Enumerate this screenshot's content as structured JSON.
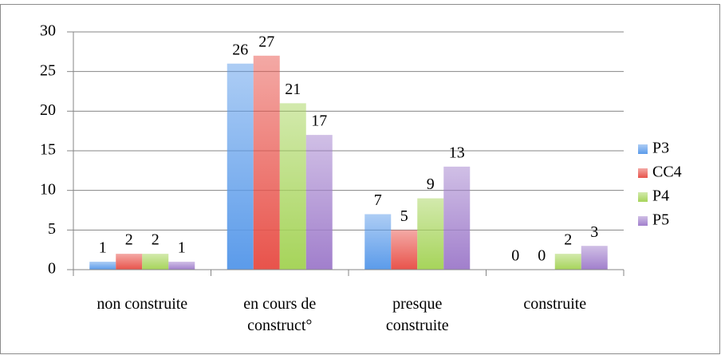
{
  "chart_data": {
    "type": "bar",
    "categories": [
      "non construite",
      "en cours de\nconstruct°",
      "presque\nconstruite",
      "construite"
    ],
    "series": [
      {
        "name": "P3",
        "color": "#5b9bea",
        "values": [
          1,
          26,
          7,
          0
        ]
      },
      {
        "name": "CC4",
        "color": "#e8534b",
        "values": [
          2,
          27,
          5,
          0
        ]
      },
      {
        "name": "P4",
        "color": "#a6d45a",
        "values": [
          2,
          21,
          9,
          2
        ]
      },
      {
        "name": "P5",
        "color": "#a17fcc",
        "values": [
          1,
          17,
          13,
          3
        ]
      }
    ],
    "ylim": [
      0,
      30
    ],
    "yticks": [
      0,
      5,
      10,
      15,
      20,
      25,
      30
    ],
    "grid": true,
    "legend": "right"
  }
}
